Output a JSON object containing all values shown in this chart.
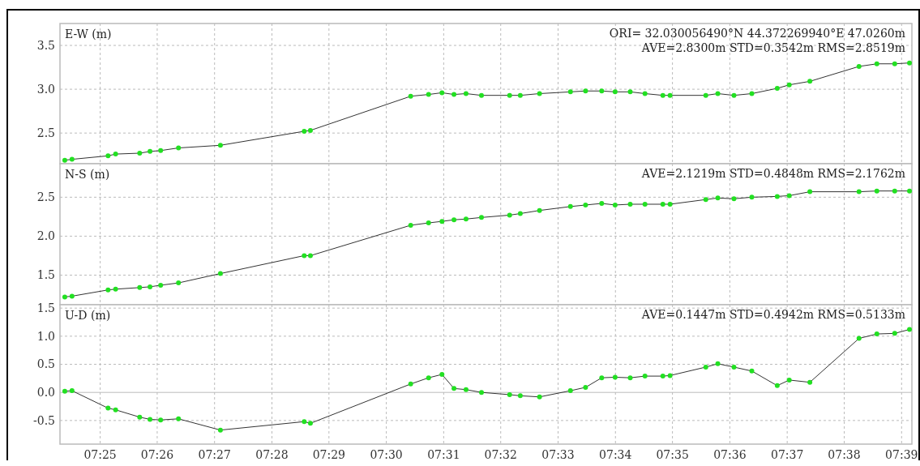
{
  "chart_data": [
    {
      "type": "line",
      "ylabel": "E-W (m)",
      "annotations": [
        "ORI= 32.030056490°N   44.372269940°E 47.0260m",
        "AVE=2.8300m STD=0.3542m RMS=2.8519m"
      ],
      "xlim": [
        7.405,
        7.653
      ],
      "ylim": [
        2.15,
        3.75
      ],
      "yticks": [
        {
          "value": 2.5,
          "label": "2.5"
        },
        {
          "value": 3,
          "label": "3.0"
        },
        {
          "value": 3.5,
          "label": "3.5"
        }
      ],
      "xticks": [
        {
          "value": 7.4167,
          "label": null
        },
        {
          "value": 7.4333,
          "label": null
        },
        {
          "value": 7.45,
          "label": null
        },
        {
          "value": 7.4667,
          "label": null
        },
        {
          "value": 7.4833,
          "label": null
        },
        {
          "value": 7.5,
          "label": null
        },
        {
          "value": 7.5167,
          "label": null
        },
        {
          "value": 7.5333,
          "label": null
        },
        {
          "value": 7.55,
          "label": null
        },
        {
          "value": 7.5667,
          "label": null
        },
        {
          "value": 7.5833,
          "label": null
        },
        {
          "value": 7.6,
          "label": null
        },
        {
          "value": 7.6167,
          "label": null
        },
        {
          "value": 7.6333,
          "label": null
        },
        {
          "value": 7.65,
          "label": null
        }
      ],
      "tick_labels": "y",
      "grid": true,
      "marker": "circle",
      "line_style": "solid",
      "x": [
        7.4064,
        7.4085,
        7.419,
        7.4212,
        7.4282,
        7.4312,
        7.4343,
        7.4395,
        7.4517,
        7.4761,
        7.4779,
        7.5071,
        7.5123,
        7.5162,
        7.5197,
        7.5232,
        7.5277,
        7.5359,
        7.539,
        7.5446,
        7.5536,
        7.558,
        7.5627,
        7.5666,
        7.571,
        7.5753,
        7.5805,
        7.5826,
        7.593,
        7.5965,
        7.6012,
        7.6064,
        7.6138,
        7.6173,
        7.6233,
        7.6376,
        7.6428,
        7.648,
        7.6523
      ],
      "series": [
        {
          "color": "#22e022",
          "values": [
            2.19,
            2.2,
            2.24,
            2.26,
            2.27,
            2.29,
            2.3,
            2.33,
            2.36,
            2.52,
            2.53,
            2.92,
            2.94,
            2.96,
            2.94,
            2.95,
            2.93,
            2.93,
            2.93,
            2.95,
            2.97,
            2.98,
            2.98,
            2.97,
            2.97,
            2.95,
            2.93,
            2.93,
            2.93,
            2.95,
            2.93,
            2.95,
            3.01,
            3.05,
            3.09,
            3.26,
            3.29,
            3.29,
            3.3
          ]
        }
      ]
    },
    {
      "type": "line",
      "ylabel": "N-S (m)",
      "annotations": [
        "AVE=2.1219m STD=0.4848m RMS=2.1762m"
      ],
      "xlim": [
        7.405,
        7.653
      ],
      "ylim": [
        1.12,
        2.93
      ],
      "yticks": [
        {
          "value": 1.5,
          "label": "1.5"
        },
        {
          "value": 2,
          "label": "2.0"
        },
        {
          "value": 2.5,
          "label": "2.5"
        }
      ],
      "xticks": [
        {
          "value": 7.4167,
          "label": null
        },
        {
          "value": 7.4333,
          "label": null
        },
        {
          "value": 7.45,
          "label": null
        },
        {
          "value": 7.4667,
          "label": null
        },
        {
          "value": 7.4833,
          "label": null
        },
        {
          "value": 7.5,
          "label": null
        },
        {
          "value": 7.5167,
          "label": null
        },
        {
          "value": 7.5333,
          "label": null
        },
        {
          "value": 7.55,
          "label": null
        },
        {
          "value": 7.5667,
          "label": null
        },
        {
          "value": 7.5833,
          "label": null
        },
        {
          "value": 7.6,
          "label": null
        },
        {
          "value": 7.6167,
          "label": null
        },
        {
          "value": 7.6333,
          "label": null
        },
        {
          "value": 7.65,
          "label": null
        }
      ],
      "tick_labels": "y",
      "grid": true,
      "marker": "circle",
      "line_style": "solid",
      "x": [
        7.4064,
        7.4085,
        7.419,
        7.4212,
        7.4282,
        7.4312,
        7.4343,
        7.4395,
        7.4517,
        7.4761,
        7.4779,
        7.5071,
        7.5123,
        7.5162,
        7.5197,
        7.5232,
        7.5277,
        7.5359,
        7.539,
        7.5446,
        7.5536,
        7.558,
        7.5627,
        7.5666,
        7.571,
        7.5753,
        7.5805,
        7.5826,
        7.593,
        7.5965,
        7.6012,
        7.6064,
        7.6138,
        7.6173,
        7.6233,
        7.6376,
        7.6428,
        7.648,
        7.6523
      ],
      "series": [
        {
          "color": "#22e022",
          "values": [
            1.22,
            1.23,
            1.31,
            1.32,
            1.34,
            1.35,
            1.37,
            1.4,
            1.52,
            1.75,
            1.75,
            2.14,
            2.17,
            2.19,
            2.21,
            2.22,
            2.24,
            2.27,
            2.29,
            2.33,
            2.38,
            2.4,
            2.42,
            2.4,
            2.41,
            2.41,
            2.41,
            2.41,
            2.47,
            2.49,
            2.48,
            2.5,
            2.51,
            2.52,
            2.57,
            2.57,
            2.58,
            2.58,
            2.58
          ]
        }
      ]
    },
    {
      "type": "line",
      "ylabel": "U-D (m)",
      "annotations": [
        "AVE=0.1447m STD=0.4942m RMS=0.5133m"
      ],
      "xlim": [
        7.405,
        7.653
      ],
      "ylim": [
        -0.92,
        1.56
      ],
      "yticks": [
        {
          "value": -0.5,
          "label": "-0.5"
        },
        {
          "value": 0,
          "label": "0.0"
        },
        {
          "value": 0.5,
          "label": "0.5"
        },
        {
          "value": 1,
          "label": "1.0"
        },
        {
          "value": 1.5,
          "label": "1.5"
        }
      ],
      "xticks": [
        {
          "value": 7.4167,
          "label": "07:25"
        },
        {
          "value": 7.4333,
          "label": "07:26"
        },
        {
          "value": 7.45,
          "label": "07:27"
        },
        {
          "value": 7.4667,
          "label": "07:28"
        },
        {
          "value": 7.4833,
          "label": "07:29"
        },
        {
          "value": 7.5,
          "label": "07:30"
        },
        {
          "value": 7.5167,
          "label": "07:31"
        },
        {
          "value": 7.5333,
          "label": "07:32"
        },
        {
          "value": 7.55,
          "label": "07:33"
        },
        {
          "value": 7.5667,
          "label": "07:34"
        },
        {
          "value": 7.5833,
          "label": "07:35"
        },
        {
          "value": 7.6,
          "label": "07:36"
        },
        {
          "value": 7.6167,
          "label": "07:37"
        },
        {
          "value": 7.6333,
          "label": "07:38"
        },
        {
          "value": 7.65,
          "label": "07:39"
        }
      ],
      "grid": true,
      "marker": "circle",
      "line_style": "solid",
      "x": [
        7.4064,
        7.4085,
        7.419,
        7.4212,
        7.4282,
        7.4312,
        7.4343,
        7.4395,
        7.4517,
        7.4761,
        7.4779,
        7.5071,
        7.5123,
        7.5162,
        7.5197,
        7.5232,
        7.5277,
        7.5359,
        7.539,
        7.5446,
        7.5536,
        7.558,
        7.5627,
        7.5666,
        7.571,
        7.5753,
        7.5805,
        7.5826,
        7.593,
        7.5965,
        7.6012,
        7.6064,
        7.6138,
        7.6173,
        7.6233,
        7.6376,
        7.6428,
        7.648,
        7.6523
      ],
      "series": [
        {
          "color": "#22e022",
          "values": [
            0.02,
            0.03,
            -0.28,
            -0.31,
            -0.44,
            -0.48,
            -0.49,
            -0.47,
            -0.67,
            -0.52,
            -0.55,
            0.15,
            0.26,
            0.32,
            0.07,
            0.05,
            0.0,
            -0.04,
            -0.06,
            -0.08,
            0.03,
            0.09,
            0.26,
            0.27,
            0.26,
            0.29,
            0.29,
            0.3,
            0.45,
            0.51,
            0.45,
            0.38,
            0.12,
            0.22,
            0.18,
            0.96,
            1.04,
            1.05,
            1.12
          ]
        }
      ]
    }
  ]
}
